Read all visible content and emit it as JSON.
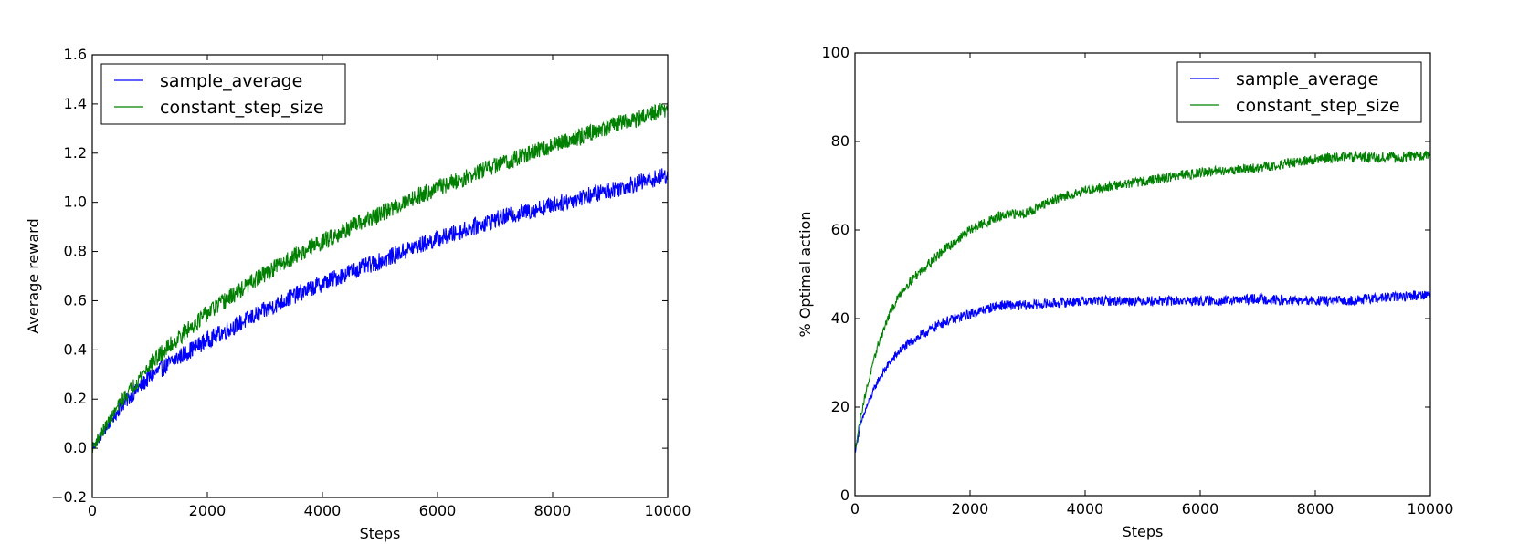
{
  "chart_data": [
    {
      "type": "line",
      "title": "",
      "xlabel": "Steps",
      "ylabel": "Average reward",
      "xlim": [
        0,
        10000
      ],
      "ylim": [
        -0.2,
        1.6
      ],
      "xticks": [
        0,
        2000,
        4000,
        6000,
        8000,
        10000
      ],
      "yticks": [
        -0.2,
        0.0,
        0.2,
        0.4,
        0.6,
        0.8,
        1.0,
        1.2,
        1.4,
        1.6
      ],
      "ytick_labels": [
        "−0.2",
        "0.0",
        "0.2",
        "0.4",
        "0.6",
        "0.8",
        "1.0",
        "1.2",
        "1.4",
        "1.6"
      ],
      "grid": false,
      "legend": "top-left",
      "series": [
        {
          "name": "sample_average",
          "color": "#0000ff",
          "x": [
            0,
            500,
            1000,
            1500,
            2000,
            2500,
            3000,
            3500,
            4000,
            4500,
            5000,
            5500,
            6000,
            6500,
            7000,
            7500,
            8000,
            8500,
            9000,
            9500,
            10000
          ],
          "y": [
            0.0,
            0.17,
            0.29,
            0.37,
            0.44,
            0.5,
            0.56,
            0.62,
            0.67,
            0.72,
            0.76,
            0.81,
            0.85,
            0.89,
            0.93,
            0.96,
            0.99,
            1.02,
            1.05,
            1.08,
            1.11
          ],
          "noise": 0.025
        },
        {
          "name": "constant_step_size",
          "color": "#008000",
          "x": [
            0,
            500,
            1000,
            1500,
            2000,
            2500,
            3000,
            3500,
            4000,
            4500,
            5000,
            5500,
            6000,
            6500,
            7000,
            7500,
            8000,
            8500,
            9000,
            9500,
            10000
          ],
          "y": [
            0.0,
            0.19,
            0.34,
            0.45,
            0.55,
            0.63,
            0.71,
            0.78,
            0.84,
            0.9,
            0.95,
            1.01,
            1.06,
            1.1,
            1.15,
            1.19,
            1.23,
            1.27,
            1.31,
            1.34,
            1.38
          ],
          "noise": 0.025
        }
      ]
    },
    {
      "type": "line",
      "title": "",
      "xlabel": "Steps",
      "ylabel": "% Optimal action",
      "xlim": [
        0,
        10000
      ],
      "ylim": [
        0,
        100
      ],
      "xticks": [
        0,
        2000,
        4000,
        6000,
        8000,
        10000
      ],
      "yticks": [
        0,
        20,
        40,
        60,
        80,
        100
      ],
      "ytick_labels": [
        "0",
        "20",
        "40",
        "60",
        "80",
        "100"
      ],
      "grid": false,
      "legend": "top-right",
      "series": [
        {
          "name": "sample_average",
          "color": "#0000ff",
          "x": [
            0,
            100,
            200,
            400,
            600,
            800,
            1000,
            1500,
            2000,
            2500,
            3000,
            3500,
            4000,
            4500,
            5000,
            5500,
            6000,
            6500,
            7000,
            7500,
            8000,
            8500,
            9000,
            9500,
            10000
          ],
          "y": [
            10,
            16,
            20,
            26,
            30,
            33,
            35,
            39,
            41,
            43,
            43,
            43.5,
            44,
            44,
            44,
            44,
            44,
            44,
            44.5,
            44,
            44,
            44,
            44.5,
            45,
            45.5
          ],
          "noise": 0.8
        },
        {
          "name": "constant_step_size",
          "color": "#008000",
          "x": [
            0,
            100,
            200,
            400,
            600,
            800,
            1000,
            1500,
            2000,
            2500,
            3000,
            3500,
            4000,
            4500,
            5000,
            5500,
            6000,
            6500,
            7000,
            7500,
            8000,
            8500,
            9000,
            9500,
            10000
          ],
          "y": [
            10,
            18,
            24,
            34,
            41,
            46,
            49,
            55,
            60,
            63,
            64,
            67,
            69,
            70,
            71,
            72,
            73,
            73.5,
            74,
            75,
            76,
            76.5,
            76.5,
            76.5,
            77
          ],
          "noise": 0.8
        }
      ]
    }
  ]
}
